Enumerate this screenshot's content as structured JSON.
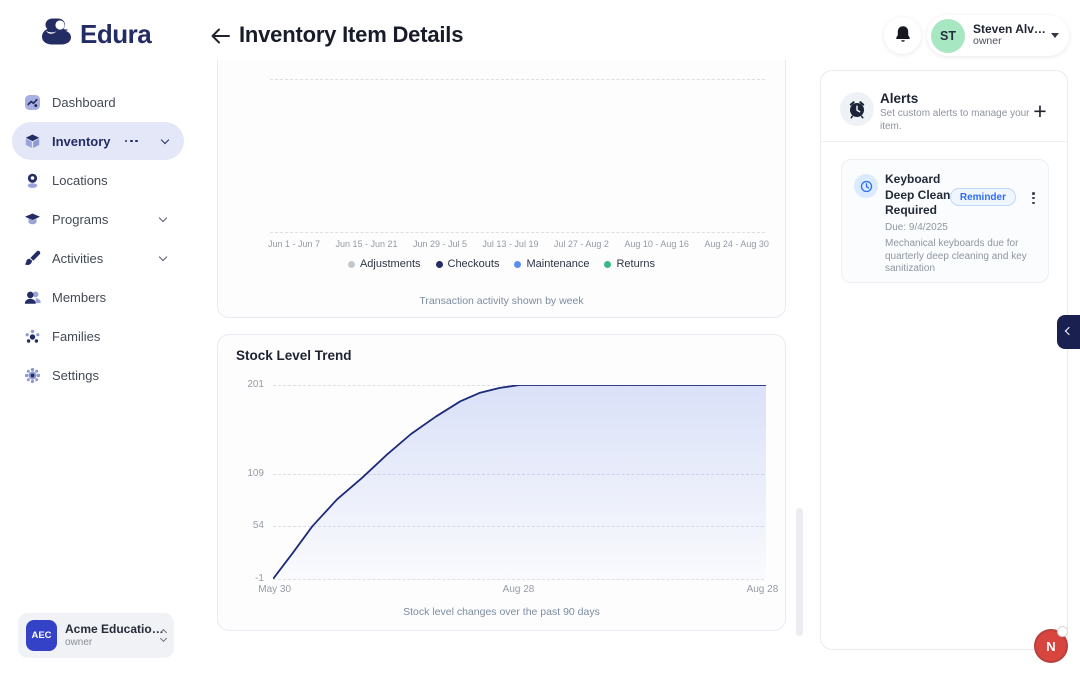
{
  "brand": {
    "name": "Edura"
  },
  "header": {
    "title": "Inventory Item Details",
    "user": {
      "initials": "ST",
      "name": "Steven Alv…",
      "role": "owner"
    }
  },
  "sidebar": {
    "items": [
      {
        "label": "Dashboard",
        "icon": "dashboard-icon",
        "active": false
      },
      {
        "label": "Inventory",
        "icon": "inventory-cube-icon",
        "active": true
      },
      {
        "label": "Locations",
        "icon": "location-pin-icon",
        "active": false
      },
      {
        "label": "Programs",
        "icon": "graduation-cap-icon",
        "active": false
      },
      {
        "label": "Activities",
        "icon": "paintbrush-icon",
        "active": false
      },
      {
        "label": "Members",
        "icon": "members-icon",
        "active": false
      },
      {
        "label": "Families",
        "icon": "families-icon",
        "active": false
      },
      {
        "label": "Settings",
        "icon": "gear-icon",
        "active": false
      }
    ],
    "org": {
      "initials": "AEC",
      "name": "Acme Educatio…",
      "role": "owner"
    }
  },
  "transactions_card": {
    "caption": "Transaction activity shown by week",
    "chart_data": {
      "type": "bar",
      "categories": [
        "Jun 1 - Jun 7",
        "Jun 15 - Jun 21",
        "Jun 29 - Jul 5",
        "Jul 13 - Jul 19",
        "Jul 27 - Aug 2",
        "Aug 10 - Aug 16",
        "Aug 24 - Aug 30"
      ],
      "series": [
        {
          "name": "Adjustments",
          "color": "#c3c8cf"
        },
        {
          "name": "Checkouts",
          "color": "#232d64"
        },
        {
          "name": "Maintenance",
          "color": "#5b8df2"
        },
        {
          "name": "Returns",
          "color": "#3bb886"
        }
      ],
      "legend_position": "bottom",
      "grid": "dashed"
    }
  },
  "stock_card": {
    "title": "Stock Level Trend",
    "caption": "Stock level changes over the past 90 days",
    "chart_data": {
      "type": "area",
      "ymin": -1,
      "ymax": 201,
      "y_ticks": [
        201,
        109,
        54,
        -1
      ],
      "x_labels": [
        "May 30",
        "Aug 28",
        "Aug 28"
      ],
      "line_color": "#1c2a7a",
      "area_top": "rgba(92,124,224,0.22)",
      "area_bottom": "rgba(92,124,224,0.02)",
      "points": [
        [
          0,
          -1
        ],
        [
          4,
          26
        ],
        [
          8,
          54
        ],
        [
          13,
          82
        ],
        [
          18,
          104
        ],
        [
          23,
          128
        ],
        [
          28,
          150
        ],
        [
          33,
          168
        ],
        [
          38,
          184
        ],
        [
          42,
          193
        ],
        [
          46,
          198
        ],
        [
          50,
          201
        ],
        [
          100,
          201
        ]
      ]
    }
  },
  "alerts_panel": {
    "title": "Alerts",
    "subtitle": "Set custom alerts to manage your item.",
    "alert": {
      "title": "Keyboard Deep Clean Required",
      "badge": "Reminder",
      "due": "Due: 9/4/2025",
      "description": "Mechanical keyboards due for quarterly deep cleaning and key sanitization"
    }
  },
  "floating": {
    "chat_label": "N"
  }
}
